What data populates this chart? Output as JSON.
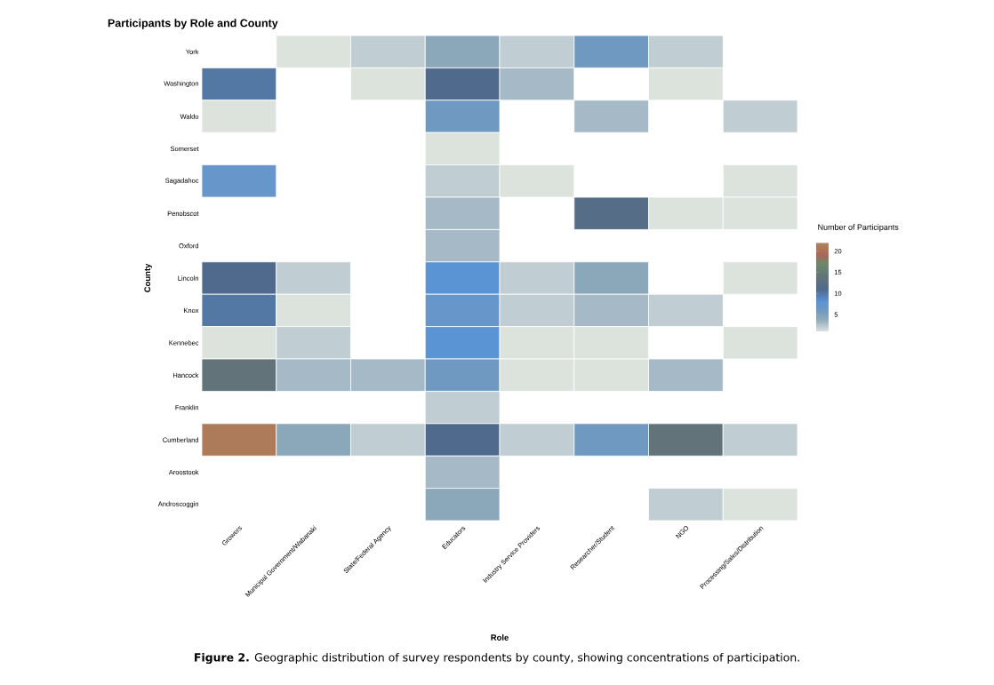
{
  "chart_data": {
    "type": "heatmap",
    "title": "Participants by Role and County",
    "xlabel": "Role",
    "ylabel": "County",
    "clabel": "Number of Participants",
    "categories": [
      "Growers",
      "Municipal Government/Wabanaki",
      "State/Federal Agency",
      "Educators",
      "Industry Service Providers",
      "Researcher/Student",
      "NGO",
      "Processing/Sales/Distribution"
    ],
    "y_categories": [
      "York",
      "Washington",
      "Waldo",
      "Somerset",
      "Sagadahoc",
      "Penobscot",
      "Oxford",
      "Lincoln",
      "Knox",
      "Kennebec",
      "Hancock",
      "Franklin",
      "Cumberland",
      "Aroostook",
      "Androscoggin"
    ],
    "cells": [
      [
        null,
        1,
        2,
        4,
        2,
        6,
        2,
        null
      ],
      [
        10,
        null,
        1,
        11,
        3,
        null,
        1,
        null
      ],
      [
        1,
        null,
        null,
        6,
        null,
        3,
        null,
        2
      ],
      [
        null,
        null,
        null,
        1,
        null,
        null,
        null,
        null
      ],
      [
        7,
        null,
        null,
        2,
        1,
        null,
        null,
        1
      ],
      [
        null,
        null,
        null,
        3,
        null,
        12,
        1,
        1
      ],
      [
        null,
        null,
        null,
        3,
        null,
        null,
        null,
        null
      ],
      [
        11,
        2,
        null,
        8,
        2,
        4,
        null,
        1
      ],
      [
        10,
        1,
        null,
        7,
        2,
        3,
        2,
        null
      ],
      [
        1,
        2,
        null,
        8,
        1,
        1,
        null,
        1
      ],
      [
        14,
        3,
        3,
        6,
        1,
        1,
        3,
        null
      ],
      [
        null,
        null,
        null,
        2,
        null,
        null,
        null,
        null
      ],
      [
        21,
        4,
        2,
        11,
        2,
        6,
        14,
        2
      ],
      [
        null,
        null,
        null,
        3,
        null,
        null,
        null,
        null
      ],
      [
        null,
        null,
        null,
        4,
        null,
        null,
        2,
        1
      ]
    ],
    "clim": [
      1,
      22
    ],
    "cticks": [
      5,
      10,
      15,
      20
    ],
    "annotations": [
      "**Figure 2.** Geographic distribution of survey respondents by county, showing concentrations of participation."
    ]
  }
}
